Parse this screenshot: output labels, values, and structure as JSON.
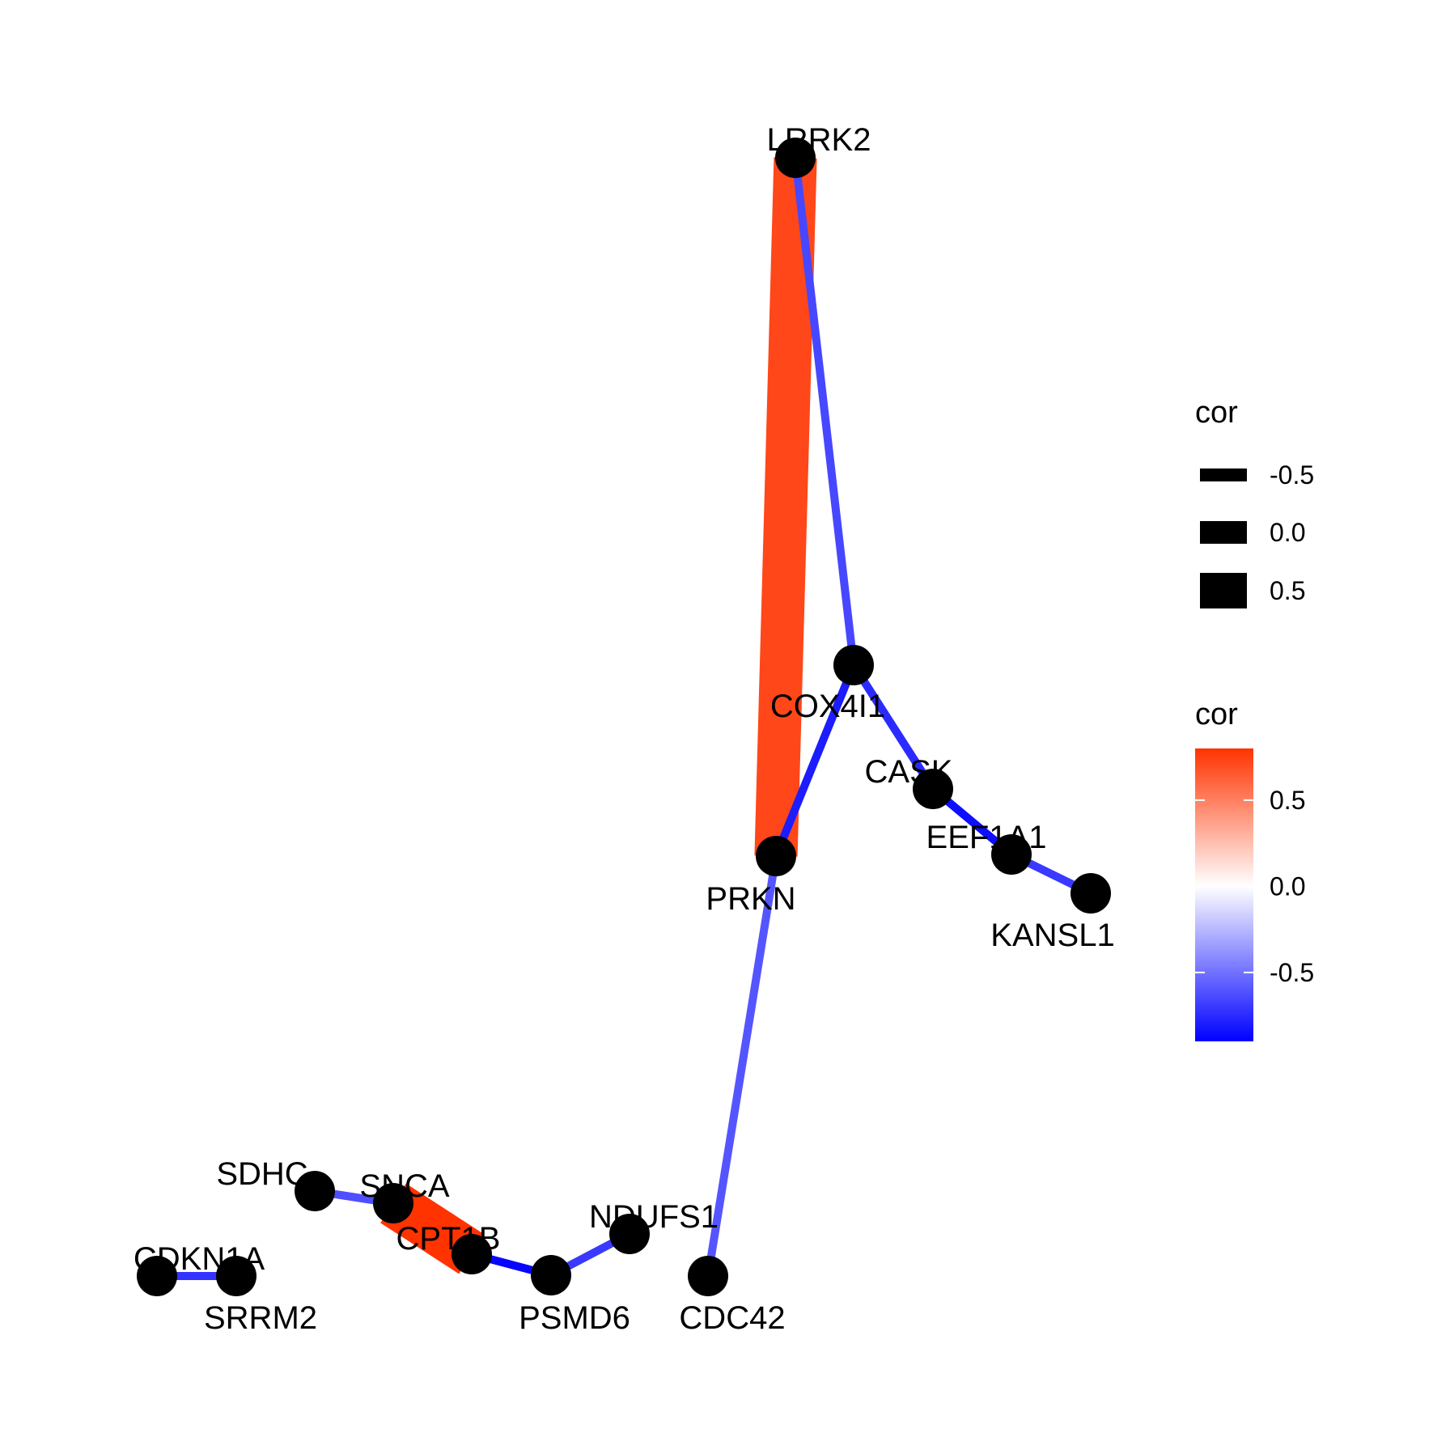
{
  "diagram": {
    "type": "network",
    "nodes": [
      {
        "id": "LRRK2",
        "label": "LRRK2"
      },
      {
        "id": "COX4I1",
        "label": "COX4I1"
      },
      {
        "id": "PRKN",
        "label": "PRKN"
      },
      {
        "id": "CASK",
        "label": "CASK"
      },
      {
        "id": "EEF1A1",
        "label": "EEF1A1"
      },
      {
        "id": "KANSL1",
        "label": "KANSL1"
      },
      {
        "id": "CDC42",
        "label": "CDC42"
      },
      {
        "id": "NDUFS1",
        "label": "NDUFS1"
      },
      {
        "id": "PSMD6",
        "label": "PSMD6"
      },
      {
        "id": "CPT1B",
        "label": "CPT1B"
      },
      {
        "id": "SNCA",
        "label": "SNCA"
      },
      {
        "id": "SDHC",
        "label": "SDHC"
      },
      {
        "id": "CDKN1A",
        "label": "CDKN1A"
      },
      {
        "id": "SRRM2",
        "label": "SRRM2"
      }
    ],
    "edges": [
      {
        "from": "LRRK2",
        "to": "PRKN",
        "cor": 0.72
      },
      {
        "from": "LRRK2",
        "to": "COX4I1",
        "cor": -0.65
      },
      {
        "from": "COX4I1",
        "to": "PRKN",
        "cor": -0.8
      },
      {
        "from": "COX4I1",
        "to": "CASK",
        "cor": -0.75
      },
      {
        "from": "CASK",
        "to": "EEF1A1",
        "cor": -0.85
      },
      {
        "from": "EEF1A1",
        "to": "KANSL1",
        "cor": -0.7
      },
      {
        "from": "PRKN",
        "to": "CDC42",
        "cor": -0.6
      },
      {
        "from": "SNCA",
        "to": "CPT1B",
        "cor": 0.8
      },
      {
        "from": "SDHC",
        "to": "SNCA",
        "cor": -0.62
      },
      {
        "from": "CPT1B",
        "to": "PSMD6",
        "cor": -0.88
      },
      {
        "from": "PSMD6",
        "to": "NDUFS1",
        "cor": -0.7
      },
      {
        "from": "CDKN1A",
        "to": "SRRM2",
        "cor": -0.72
      }
    ]
  },
  "legend": {
    "width_title": "cor",
    "width_entries": [
      {
        "label": "-0.5",
        "value": -0.5
      },
      {
        "label": "0.0",
        "value": 0.0
      },
      {
        "label": "0.5",
        "value": 0.5
      }
    ],
    "color_title": "cor",
    "colorbar": {
      "min": -0.9,
      "max": 0.8,
      "low_color": "#0000FF",
      "mid_color": "#FFFFFF",
      "high_color": "#FF3300",
      "ticks": [
        {
          "label": "0.5",
          "value": 0.5
        },
        {
          "label": "0.0",
          "value": 0.0
        },
        {
          "label": "-0.5",
          "value": -0.5
        }
      ]
    }
  }
}
